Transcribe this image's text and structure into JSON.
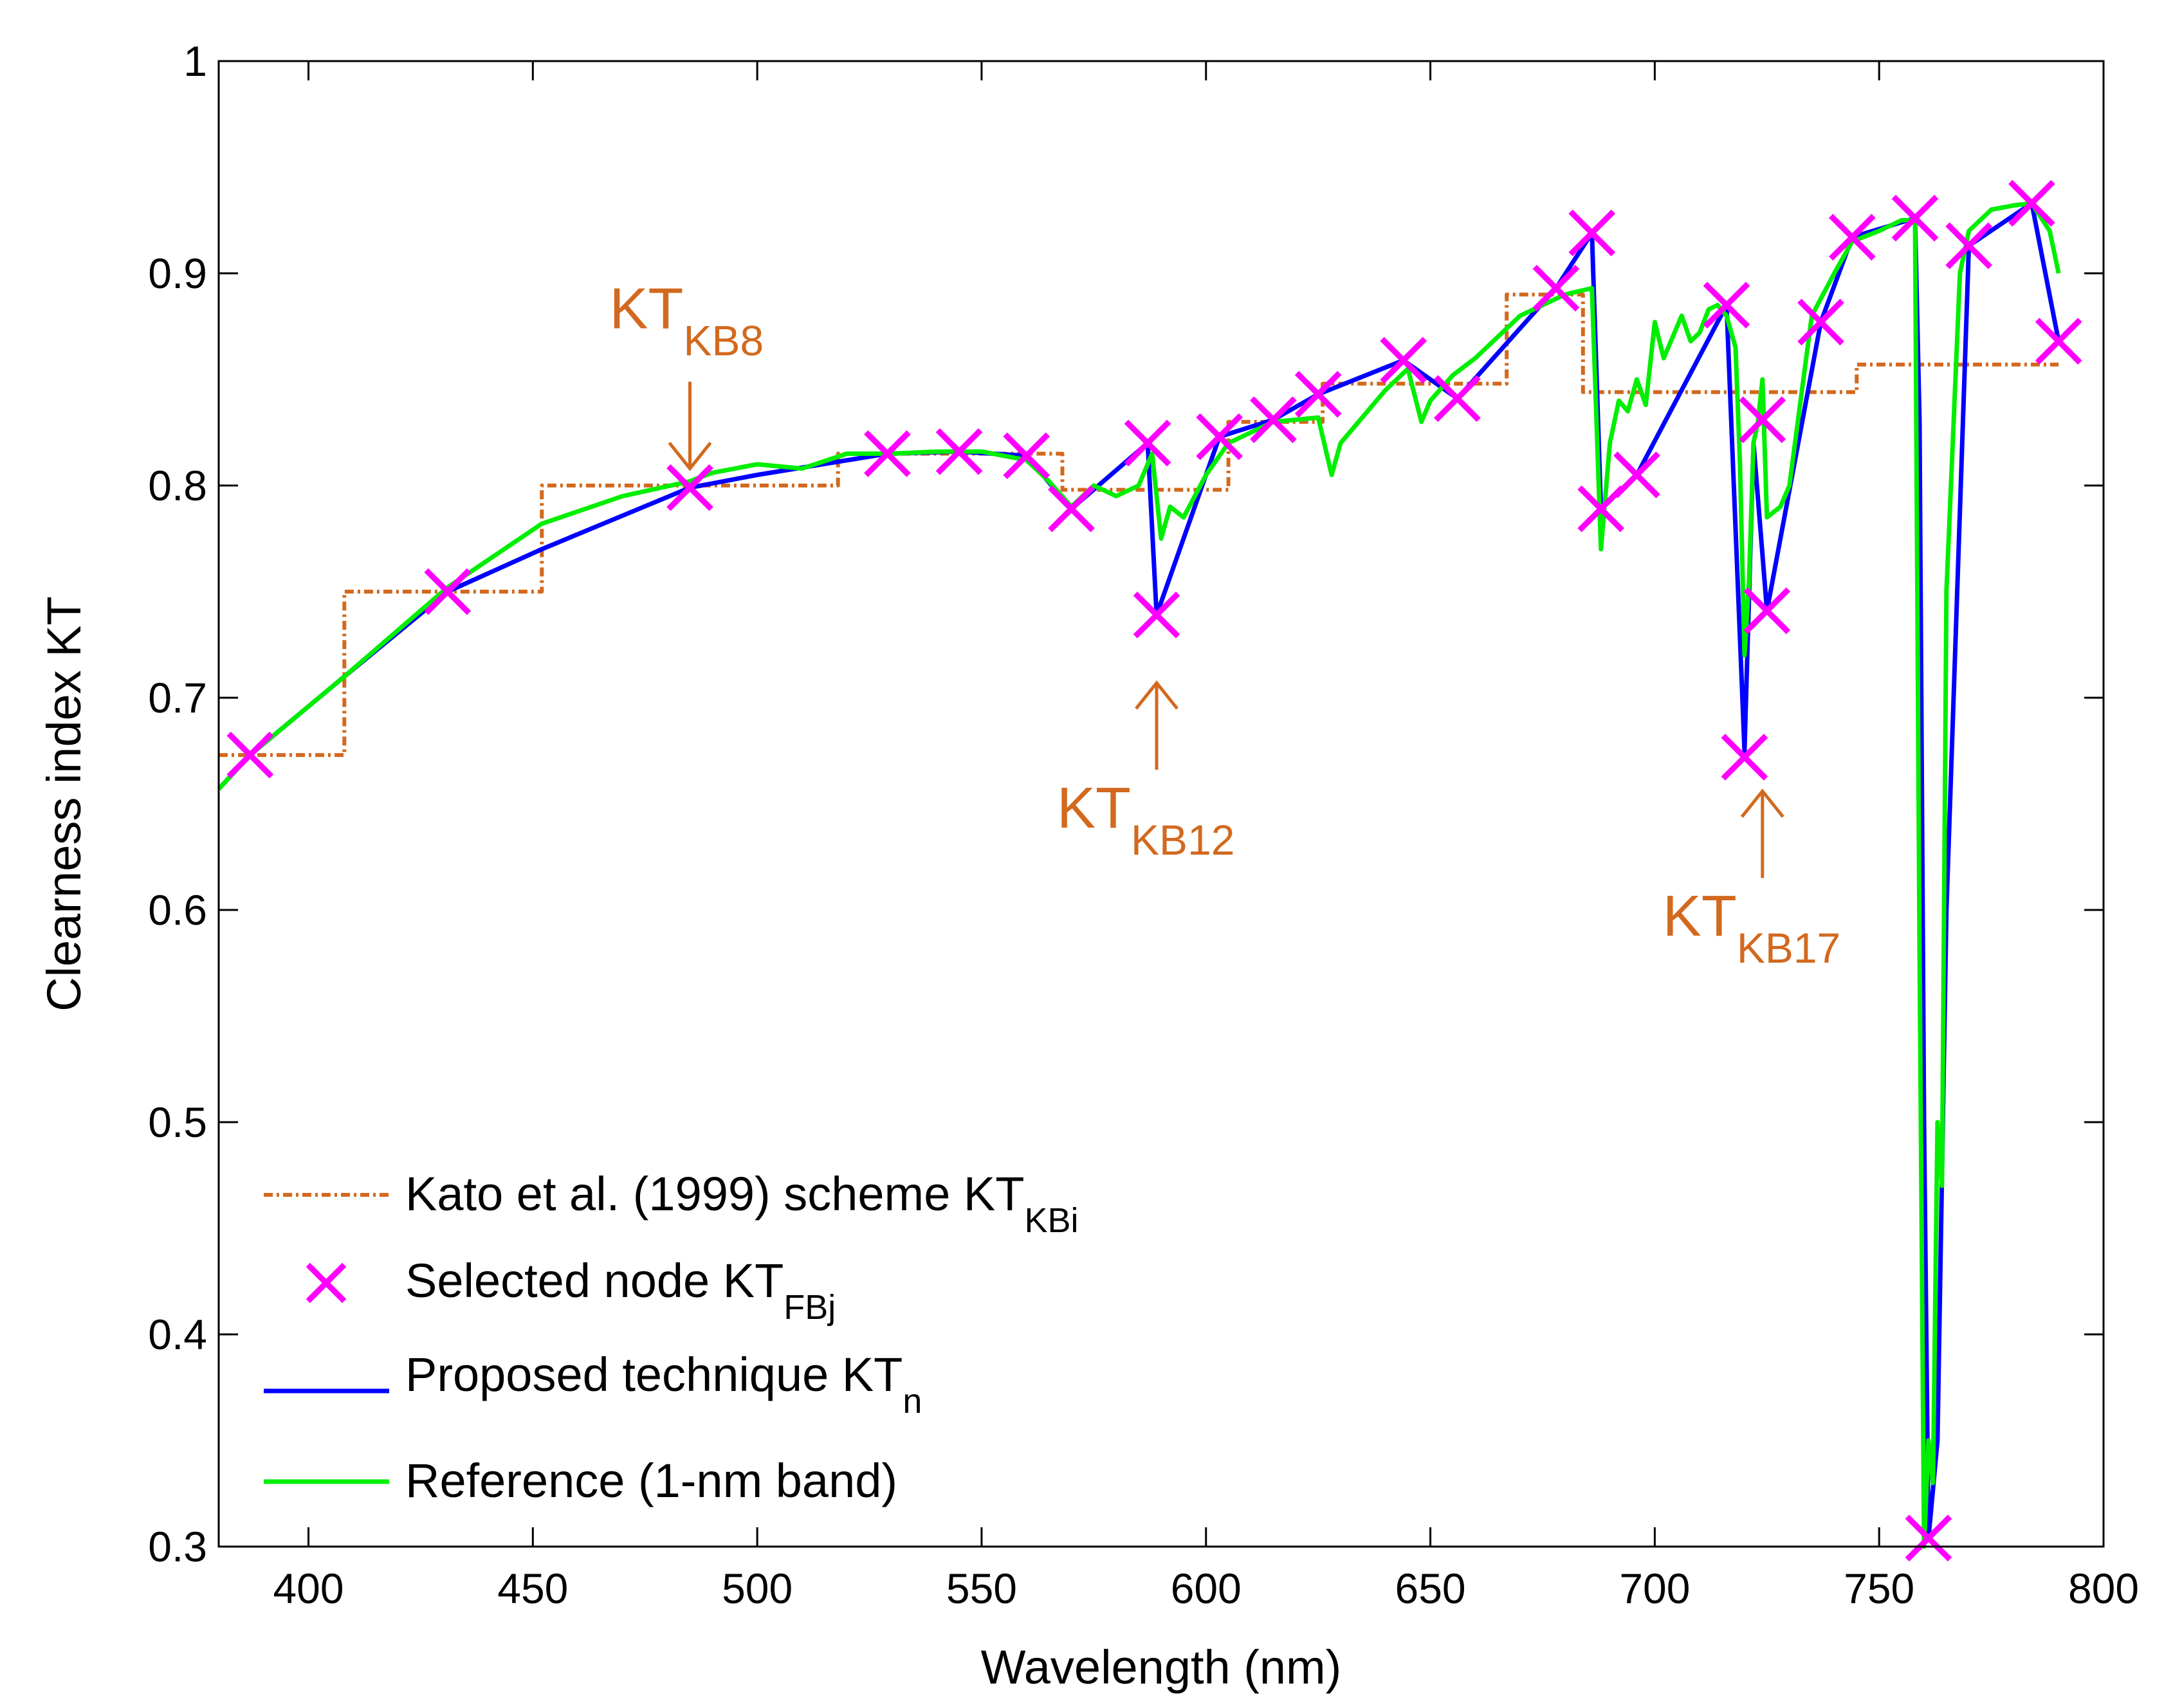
{
  "chart_data": {
    "type": "line",
    "title": "",
    "xlabel": "Wavelength (nm)",
    "ylabel": "Clearness index KT",
    "xlim": [
      380,
      800
    ],
    "ylim": [
      0.3,
      1.0
    ],
    "x_ticks": [
      "400",
      "450",
      "500",
      "550",
      "600",
      "650",
      "700",
      "750",
      "800"
    ],
    "x_tick_values": [
      400,
      450,
      500,
      550,
      600,
      650,
      700,
      750,
      800
    ],
    "y_ticks": [
      "0.3",
      "0.4",
      "0.5",
      "0.6",
      "0.7",
      "0.8",
      "0.9",
      "1"
    ],
    "y_tick_values": [
      0.3,
      0.4,
      0.5,
      0.6,
      0.7,
      0.8,
      0.9,
      1.0
    ],
    "grid": false,
    "legend_position": "bottom-left",
    "colors": {
      "kato": "#d2691e",
      "nodes": "#ff00ff",
      "proposed": "#0000ff",
      "reference": "#00ee00",
      "annotation": "#d2691e"
    },
    "series": [
      {
        "name": "Kato et al. (1999) scheme KT",
        "sub": "KBi",
        "style": "step-dashdot",
        "x": [
          380,
          408,
          408,
          452,
          452,
          518,
          518,
          568,
          568,
          605,
          605,
          626,
          626,
          667,
          667,
          684,
          684,
          745,
          745,
          790
        ],
        "y": [
          0.673,
          0.673,
          0.75,
          0.75,
          0.8,
          0.8,
          0.815,
          0.815,
          0.798,
          0.798,
          0.83,
          0.83,
          0.848,
          0.848,
          0.89,
          0.89,
          0.844,
          0.844,
          0.857,
          0.857
        ]
      },
      {
        "name": "Selected node KT",
        "sub": "FBj",
        "style": "markers-x",
        "x": [
          387,
          431,
          485,
          529,
          545,
          560,
          570,
          587,
          589,
          603,
          615,
          625,
          644,
          656,
          678,
          686,
          688,
          696,
          716,
          720,
          724,
          725,
          737,
          744,
          758,
          761,
          770,
          784,
          790
        ],
        "y": [
          0.673,
          0.75,
          0.799,
          0.815,
          0.816,
          0.814,
          0.789,
          0.82,
          0.739,
          0.823,
          0.831,
          0.843,
          0.859,
          0.841,
          0.893,
          0.919,
          0.789,
          0.805,
          0.885,
          0.672,
          0.831,
          0.741,
          0.877,
          0.917,
          0.926,
          0.304,
          0.913,
          0.933,
          0.868
        ]
      },
      {
        "name": "Proposed technique KT",
        "sub": "n",
        "style": "line",
        "x": [
          380,
          387,
          408,
          431,
          452,
          485,
          500,
          529,
          545,
          560,
          570,
          587,
          589,
          603,
          615,
          625,
          644,
          656,
          678,
          686,
          688,
          696,
          716,
          720,
          722,
          725,
          737,
          744,
          758,
          759,
          760,
          761,
          763,
          765,
          770,
          784,
          790
        ],
        "y": [
          0.657,
          0.673,
          0.71,
          0.75,
          0.77,
          0.799,
          0.805,
          0.815,
          0.816,
          0.814,
          0.789,
          0.82,
          0.739,
          0.823,
          0.831,
          0.843,
          0.859,
          0.841,
          0.893,
          0.919,
          0.789,
          0.805,
          0.885,
          0.675,
          0.82,
          0.741,
          0.877,
          0.917,
          0.926,
          0.83,
          0.5,
          0.304,
          0.35,
          0.6,
          0.913,
          0.933,
          0.868
        ]
      },
      {
        "name": "Reference (1-nm band)",
        "style": "line",
        "x": [
          380,
          387,
          408,
          431,
          452,
          470,
          485,
          490,
          500,
          510,
          520,
          530,
          540,
          550,
          560,
          565,
          570,
          575,
          580,
          585,
          588,
          590,
          592,
          595,
          600,
          605,
          615,
          625,
          628,
          630,
          640,
          645,
          648,
          650,
          655,
          660,
          670,
          680,
          684,
          686,
          688,
          690,
          692,
          694,
          696,
          698,
          700,
          702,
          704,
          706,
          708,
          710,
          712,
          714,
          716,
          718,
          719,
          720,
          721,
          722,
          723,
          724,
          725,
          728,
          730,
          735,
          740,
          744,
          750,
          755,
          758,
          759,
          760,
          761,
          762,
          763,
          764,
          765,
          768,
          770,
          775,
          780,
          784,
          788,
          790
        ],
        "y": [
          0.657,
          0.673,
          0.71,
          0.752,
          0.782,
          0.795,
          0.802,
          0.806,
          0.81,
          0.808,
          0.815,
          0.815,
          0.816,
          0.816,
          0.812,
          0.802,
          0.79,
          0.8,
          0.795,
          0.8,
          0.815,
          0.775,
          0.79,
          0.785,
          0.805,
          0.82,
          0.83,
          0.832,
          0.805,
          0.82,
          0.845,
          0.855,
          0.83,
          0.84,
          0.852,
          0.86,
          0.88,
          0.89,
          0.892,
          0.893,
          0.77,
          0.82,
          0.84,
          0.835,
          0.85,
          0.838,
          0.877,
          0.86,
          0.87,
          0.88,
          0.868,
          0.872,
          0.883,
          0.885,
          0.88,
          0.865,
          0.81,
          0.72,
          0.755,
          0.82,
          0.83,
          0.85,
          0.785,
          0.79,
          0.8,
          0.88,
          0.9,
          0.915,
          0.92,
          0.925,
          0.925,
          0.58,
          0.3,
          0.35,
          0.33,
          0.5,
          0.47,
          0.75,
          0.9,
          0.92,
          0.93,
          0.932,
          0.933,
          0.92,
          0.9
        ]
      }
    ],
    "annotations": [
      {
        "id": "kb8",
        "label": "KT",
        "sub": "KB8",
        "x": 485,
        "y": 0.808,
        "direction": "down"
      },
      {
        "id": "kb12",
        "label": "KT",
        "sub": "KB12",
        "x": 589,
        "y": 0.707,
        "direction": "up"
      },
      {
        "id": "kb17",
        "label": "KT",
        "sub": "KB17",
        "x": 724,
        "y": 0.656,
        "direction": "up"
      }
    ]
  }
}
